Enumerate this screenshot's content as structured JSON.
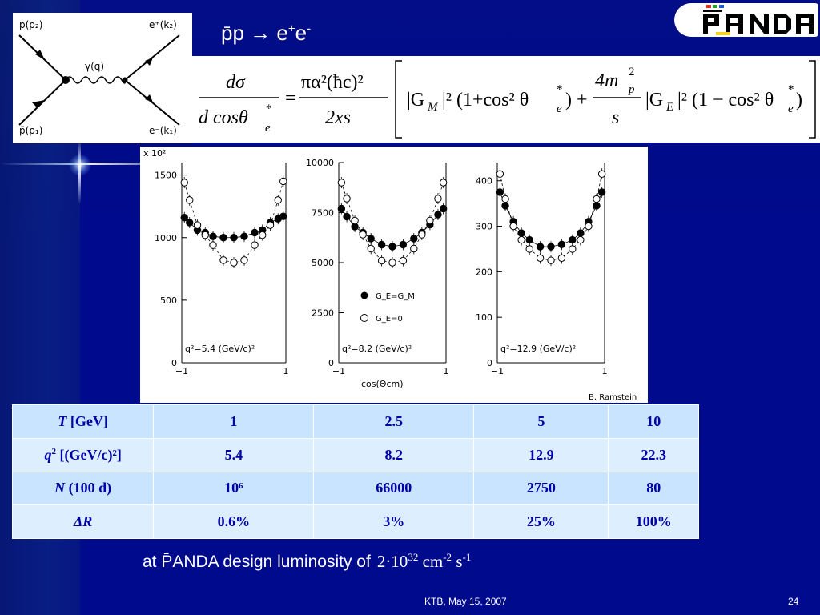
{
  "slide": {
    "title": "p̄p → e⁺e⁻",
    "title_parts": {
      "pp": "p̄p",
      "arrow": " → e",
      "plus": "+",
      "e": "e",
      "minus": "-"
    },
    "footer_date": "KTB, May 15, 2007",
    "page_number": "24",
    "background_color": "#000a8c",
    "text_color": "#ffffff"
  },
  "logo": {
    "text": "PANDA",
    "accent_colors": [
      "#e0301e",
      "#2e9d2e",
      "#1f5cd6",
      "#f2d21b"
    ]
  },
  "feynman": {
    "labels": {
      "top_left": "p(p₂)",
      "bottom_left": "p̄(p₁)",
      "top_right": "e⁺(k₂)",
      "bottom_right": "e⁻(k₁)",
      "boson": "γ(q)"
    }
  },
  "formula": {
    "lhs_num": "dσ",
    "lhs_den": "d cosθ",
    "lhs_den_sub": "e",
    "lhs_den_sup": "*",
    "equals": "=",
    "pref_num": "πα²(ħc)²",
    "pref_den": "2xs",
    "gm_term": "|G",
    "gm_sub": "M",
    "gm_tail": "|² (1+cos² θ",
    "theta_sub": "e",
    "theta_sup": "*",
    "mid": ") +",
    "frac_num": "4m",
    "frac_num_sub": "p",
    "frac_num_sup": "2",
    "frac_den": "s",
    "ge_term": "|G",
    "ge_sub": "E",
    "ge_tail": "|² (1 − cos² θ",
    "end": ")"
  },
  "plot": {
    "credit": "B. Ramstein",
    "yscale_note": "x 10²",
    "xlabel": "cos(Θcm)",
    "legend": {
      "filled": "G_E=G_M",
      "open": "G_E=0"
    }
  },
  "chart_data": [
    {
      "type": "scatter",
      "annotation": "q²=5.4 (GeV/c)²",
      "ylabel": "x 10²",
      "xlabel": "",
      "x": [
        -0.95,
        -0.85,
        -0.7,
        -0.55,
        -0.4,
        -0.2,
        0.0,
        0.2,
        0.4,
        0.55,
        0.7,
        0.85,
        0.95
      ],
      "ylim": [
        0,
        1600
      ],
      "yticks": [
        0,
        500,
        1000,
        1500
      ],
      "xticks": [
        -1,
        1
      ],
      "series": [
        {
          "name": "G_E=G_M",
          "marker": "filled",
          "values": [
            1160,
            1120,
            1060,
            1040,
            1010,
            1000,
            1000,
            1010,
            1040,
            1060,
            1120,
            1150,
            1170
          ]
        },
        {
          "name": "G_E=0",
          "marker": "open",
          "values": [
            1440,
            1300,
            1100,
            1020,
            940,
            820,
            800,
            820,
            940,
            1020,
            1100,
            1300,
            1450
          ]
        }
      ]
    },
    {
      "type": "scatter",
      "annotation": "q²=8.2 (GeV/c)²",
      "xlabel": "cos(Θcm)",
      "x": [
        -0.95,
        -0.85,
        -0.7,
        -0.55,
        -0.4,
        -0.2,
        0.0,
        0.2,
        0.4,
        0.55,
        0.7,
        0.85,
        0.95
      ],
      "ylim": [
        0,
        10000
      ],
      "yticks": [
        0,
        2500,
        5000,
        7500,
        10000
      ],
      "xticks": [
        -1,
        1
      ],
      "series": [
        {
          "name": "G_E=G_M",
          "marker": "filled",
          "values": [
            7700,
            7300,
            6800,
            6500,
            6200,
            5900,
            5800,
            5900,
            6200,
            6500,
            6900,
            7400,
            7700
          ]
        },
        {
          "name": "G_E=0",
          "marker": "open",
          "values": [
            9000,
            8200,
            7100,
            6400,
            5700,
            5100,
            5000,
            5100,
            5700,
            6400,
            7100,
            8200,
            9000
          ]
        }
      ]
    },
    {
      "type": "scatter",
      "annotation": "q²=12.9 (GeV/c)²",
      "xlabel": "",
      "x": [
        -0.95,
        -0.85,
        -0.7,
        -0.55,
        -0.4,
        -0.2,
        0.0,
        0.2,
        0.4,
        0.55,
        0.7,
        0.85,
        0.95
      ],
      "ylim": [
        0,
        440
      ],
      "yticks": [
        0,
        100,
        200,
        300,
        400
      ],
      "xticks": [
        -1,
        1
      ],
      "series": [
        {
          "name": "G_E=G_M",
          "marker": "filled",
          "values": [
            375,
            345,
            310,
            285,
            270,
            255,
            255,
            260,
            270,
            285,
            310,
            345,
            375
          ]
        },
        {
          "name": "G_E=0",
          "marker": "open",
          "values": [
            415,
            360,
            300,
            270,
            250,
            230,
            225,
            230,
            250,
            270,
            300,
            360,
            415
          ]
        }
      ]
    }
  ],
  "table": {
    "rows": [
      {
        "label_main": "T",
        "label_rest": "  [GeV]",
        "label_sup": "",
        "values": [
          "1",
          "2.5",
          "5",
          "10"
        ],
        "value_sup": ""
      },
      {
        "label_main": "q",
        "label_sup": "2",
        "label_rest": " [(GeV/c)²]",
        "values": [
          "5.4",
          "8.2",
          "12.9",
          "22.3"
        ]
      },
      {
        "label_main": "N",
        "label_sup": "",
        "label_rest": " (100 d)",
        "values": [
          "10⁶",
          "66000",
          "2750",
          "80"
        ]
      },
      {
        "label_main": "ΔR",
        "label_sup": "",
        "label_rest": "",
        "values": [
          "0.6%",
          "3%",
          "25%",
          "100%"
        ]
      }
    ]
  },
  "footnote": {
    "text": "at P̄ANDA design luminosity of",
    "lumi_base": "2·10",
    "lumi_exp": "32",
    "unit_cm": " cm",
    "unit_cm_exp": "-2",
    "unit_s": " s",
    "unit_s_exp": "-1"
  }
}
